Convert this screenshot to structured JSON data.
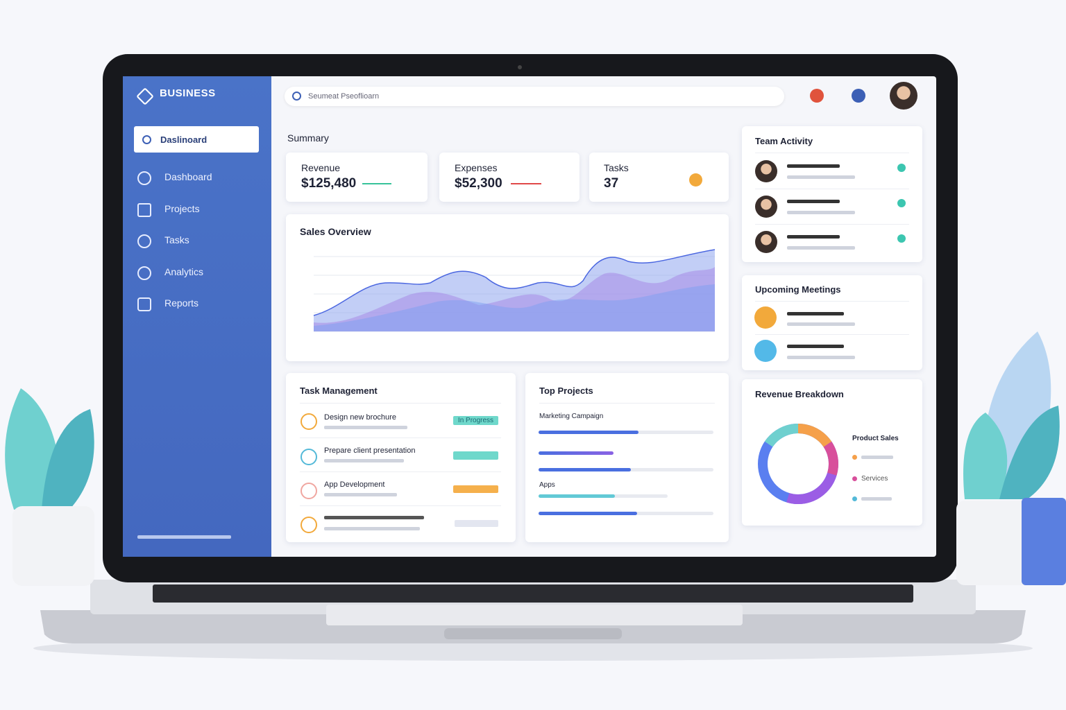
{
  "sidebar": {
    "brand": "BUSINESS",
    "search": "Daslinoard",
    "nav": [
      "Dashboard",
      "Projects",
      "Tasks",
      "Analytics",
      "Reports"
    ]
  },
  "header": {
    "search_placeholder": "Seumeat Pseoflioarn"
  },
  "summary": {
    "title": "Summary",
    "cards": [
      {
        "label": "Revenue",
        "value": "$125,480"
      },
      {
        "label": "Expenses",
        "value": "$52,300"
      },
      {
        "label": "Tasks",
        "value": "37"
      }
    ]
  },
  "sales_overview": {
    "title": "Sales Overview"
  },
  "task_management": {
    "title": "Task Management",
    "tasks": [
      {
        "name": "Design new brochure",
        "status": "In Progress"
      },
      {
        "name": "Prepare client presentation"
      },
      {
        "name": "App Development"
      }
    ]
  },
  "top_projects": {
    "title": "Top Projects",
    "projects": [
      "Marketing Campaign",
      "Apps"
    ]
  },
  "team_activity": {
    "title": "Team Activity"
  },
  "upcoming_meetings": {
    "title": "Upcoming Meetings"
  },
  "revenue_breakdown": {
    "title": "Revenue Breakdown",
    "legend": [
      "Product Sales",
      "Services"
    ]
  }
}
